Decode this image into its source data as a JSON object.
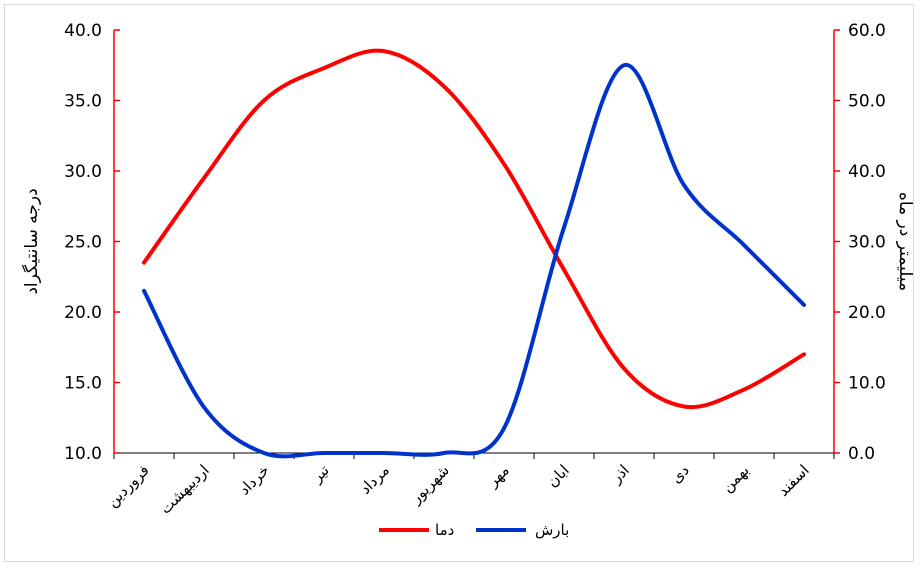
{
  "chart_data": {
    "type": "line",
    "categories": [
      "فروردین",
      "اردیبهشت",
      "خرداد",
      "تیر",
      "مرداد",
      "شهریور",
      "مهر",
      "ابان",
      "اذر",
      "دی",
      "بهمن",
      "اسفند"
    ],
    "series": [
      {
        "name": "دما",
        "axis": "left",
        "color": "#ff0000",
        "values": [
          23.5,
          29.5,
          35.0,
          37.3,
          38.5,
          36.0,
          30.5,
          23.0,
          16.0,
          13.3,
          14.5,
          17.0
        ]
      },
      {
        "name": "بارش",
        "axis": "right",
        "color": "#0033cc",
        "values": [
          23.0,
          6.5,
          0.0,
          0.0,
          0.0,
          0.0,
          3.5,
          32.0,
          55.0,
          38.0,
          29.5,
          21.0
        ]
      }
    ],
    "y_left": {
      "label": "درجه سانتیگراد",
      "min": 10,
      "max": 40,
      "ticks": [
        "10.0",
        "15.0",
        "20.0",
        "25.0",
        "30.0",
        "35.0",
        "40.0"
      ],
      "color": "#ff0000"
    },
    "y_right": {
      "label": "میلیمتر در ماه",
      "min": 0,
      "max": 60,
      "ticks": [
        "0.0",
        "10.0",
        "20.0",
        "30.0",
        "40.0",
        "50.0",
        "60.0"
      ],
      "color": "#ff0000"
    },
    "legend": {
      "position": "bottom",
      "items": [
        {
          "label": "دما",
          "color": "#ff0000"
        },
        {
          "label": "بارش",
          "color": "#0033cc"
        }
      ]
    },
    "grid": false
  }
}
